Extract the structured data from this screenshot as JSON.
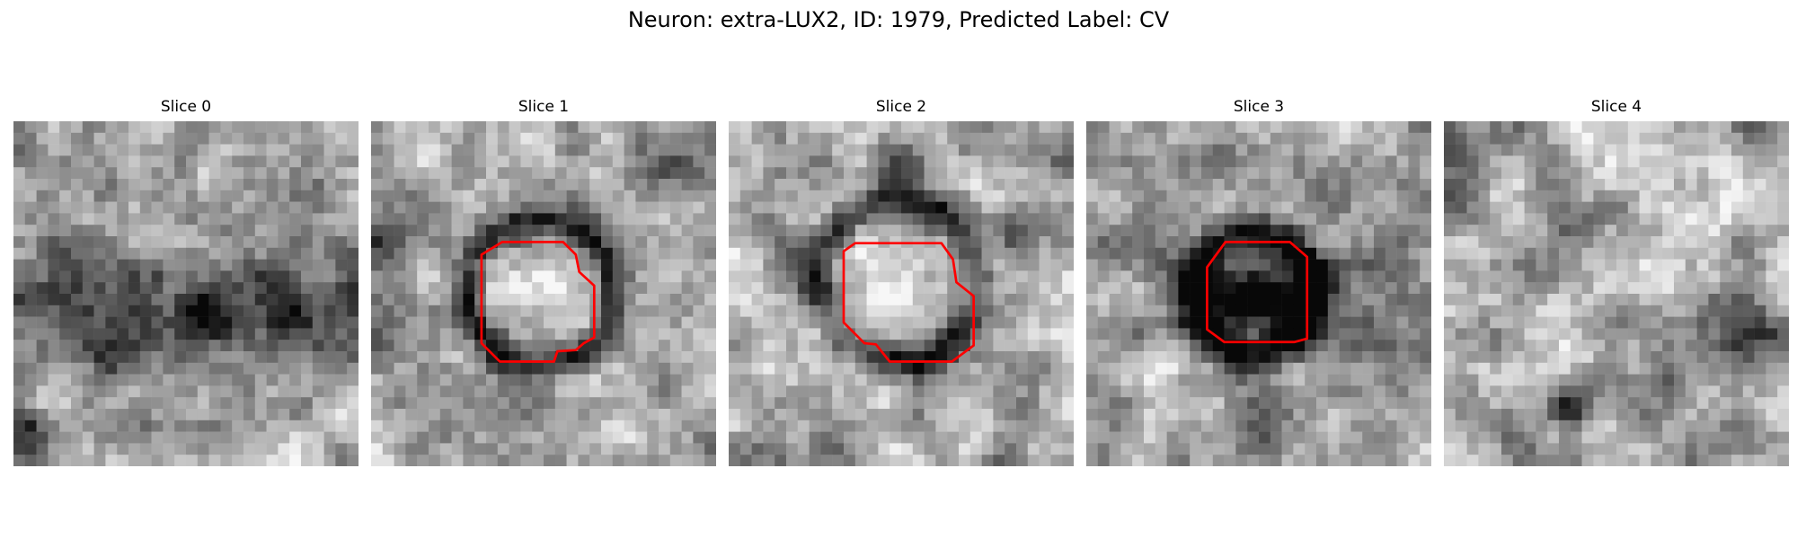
{
  "figure": {
    "title": "Neuron: extra-LUX2, ID: 1979, Predicted Label: CV"
  },
  "panels": [
    {
      "title": "Slice 0",
      "has_contour": false,
      "content": "noisy grayscale EM tissue patch"
    },
    {
      "title": "Slice 1",
      "has_contour": true,
      "content": "round bright vesicle with dark membrane ring, outlined in red"
    },
    {
      "title": "Slice 2",
      "has_contour": true,
      "content": "bright textured vesicle with dark surround, outlined in red"
    },
    {
      "title": "Slice 3",
      "has_contour": true,
      "content": "grey vesicle inside dark ring, outlined in red"
    },
    {
      "title": "Slice 4",
      "has_contour": false,
      "content": "noisy grayscale EM tissue patch"
    }
  ],
  "colors": {
    "contour": "#ff0000",
    "background": "#ffffff"
  }
}
